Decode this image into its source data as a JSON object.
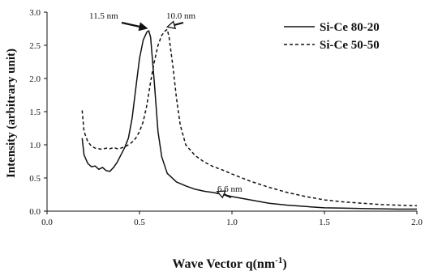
{
  "chart_data": {
    "type": "line",
    "xlabel": "Wave Vector q(nm",
    "xlabel_sup": "-1",
    "xlabel_suffix": ")",
    "ylabel": "Intensity (arbitrary unit)",
    "xlim": [
      0,
      2.0
    ],
    "ylim": [
      0,
      3.0
    ],
    "x_ticks": [
      "0.0",
      "0.5",
      "1.0",
      "1.5",
      "2.0"
    ],
    "y_ticks": [
      "0.0",
      "0.5",
      "1.0",
      "1.5",
      "2.0",
      "2.5",
      "3.0"
    ],
    "grid": false,
    "legend_position": "top-right",
    "series": [
      {
        "name": "Si-Ce 80-20",
        "style": "solid",
        "color": "#111111",
        "x": [
          0.19,
          0.2,
          0.22,
          0.24,
          0.26,
          0.28,
          0.3,
          0.32,
          0.34,
          0.36,
          0.38,
          0.4,
          0.42,
          0.44,
          0.46,
          0.48,
          0.5,
          0.52,
          0.54,
          0.55,
          0.56,
          0.58,
          0.6,
          0.62,
          0.65,
          0.7,
          0.75,
          0.8,
          0.85,
          0.9,
          0.95,
          1.0,
          1.1,
          1.2,
          1.3,
          1.4,
          1.5,
          1.6,
          1.7,
          1.8,
          1.9,
          2.0
        ],
        "y": [
          1.1,
          0.85,
          0.72,
          0.67,
          0.68,
          0.63,
          0.66,
          0.61,
          0.6,
          0.66,
          0.74,
          0.85,
          0.96,
          1.1,
          1.4,
          1.85,
          2.3,
          2.58,
          2.7,
          2.72,
          2.62,
          1.95,
          1.2,
          0.82,
          0.57,
          0.44,
          0.38,
          0.33,
          0.3,
          0.28,
          0.25,
          0.22,
          0.17,
          0.12,
          0.09,
          0.07,
          0.05,
          0.045,
          0.04,
          0.035,
          0.03,
          0.03
        ]
      },
      {
        "name": "Si-Ce 50-50",
        "style": "dashed",
        "color": "#111111",
        "x": [
          0.19,
          0.2,
          0.22,
          0.24,
          0.26,
          0.28,
          0.3,
          0.32,
          0.34,
          0.36,
          0.38,
          0.4,
          0.42,
          0.44,
          0.46,
          0.48,
          0.5,
          0.52,
          0.54,
          0.56,
          0.58,
          0.6,
          0.62,
          0.64,
          0.65,
          0.66,
          0.68,
          0.7,
          0.72,
          0.75,
          0.8,
          0.85,
          0.9,
          0.95,
          1.0,
          1.1,
          1.2,
          1.3,
          1.4,
          1.5,
          1.6,
          1.7,
          1.8,
          1.9,
          2.0
        ],
        "y": [
          1.52,
          1.2,
          1.05,
          0.98,
          0.95,
          0.94,
          0.93,
          0.95,
          0.94,
          0.96,
          0.94,
          0.95,
          0.97,
          1.0,
          1.04,
          1.1,
          1.2,
          1.35,
          1.6,
          1.95,
          2.25,
          2.5,
          2.65,
          2.72,
          2.74,
          2.62,
          2.2,
          1.7,
          1.3,
          1.0,
          0.84,
          0.74,
          0.67,
          0.62,
          0.56,
          0.45,
          0.36,
          0.28,
          0.22,
          0.17,
          0.14,
          0.12,
          0.1,
          0.09,
          0.08
        ]
      }
    ],
    "annotations": [
      {
        "text": "11.5 nm",
        "x": 0.54,
        "y": 2.72,
        "arrow": "filled"
      },
      {
        "text": "10.0 nm",
        "x": 0.65,
        "y": 2.74,
        "arrow": "open"
      },
      {
        "text": "6.6 nm",
        "x": 0.92,
        "y": 0.26,
        "arrow": "open"
      }
    ]
  }
}
